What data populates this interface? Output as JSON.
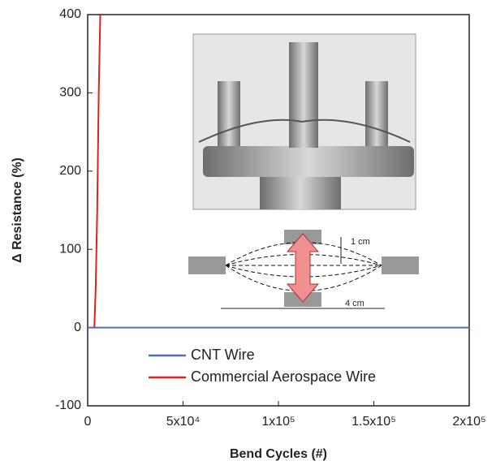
{
  "chart_data": {
    "type": "line",
    "x_label": "Bend Cycles (#)",
    "y_label": "Δ Resistance (%)",
    "xlim": [
      0,
      200000
    ],
    "ylim": [
      -100,
      400
    ],
    "xticks": [
      0,
      {
        "value": 50000,
        "label": "5x10⁴"
      },
      {
        "value": 100000,
        "label": "1x10⁵"
      },
      {
        "value": 150000,
        "label": "1.5x10⁵"
      },
      {
        "value": 200000,
        "label": "2x10⁵"
      }
    ],
    "yticks": [
      -100,
      0,
      100,
      200,
      300,
      400
    ],
    "legend_loc": "lower left",
    "series": [
      {
        "name": "CNT Wire",
        "color": "#4a6fc0",
        "x": [
          0,
          200000
        ],
        "values": [
          0,
          0
        ]
      },
      {
        "name": "Commercial Aerospace Wire",
        "color": "#e02020",
        "x": [
          3500,
          4200,
          5000,
          5800,
          6600
        ],
        "values": [
          0,
          50,
          150,
          300,
          400
        ]
      }
    ],
    "annotations": [
      "1 cm",
      "4 cm"
    ]
  }
}
